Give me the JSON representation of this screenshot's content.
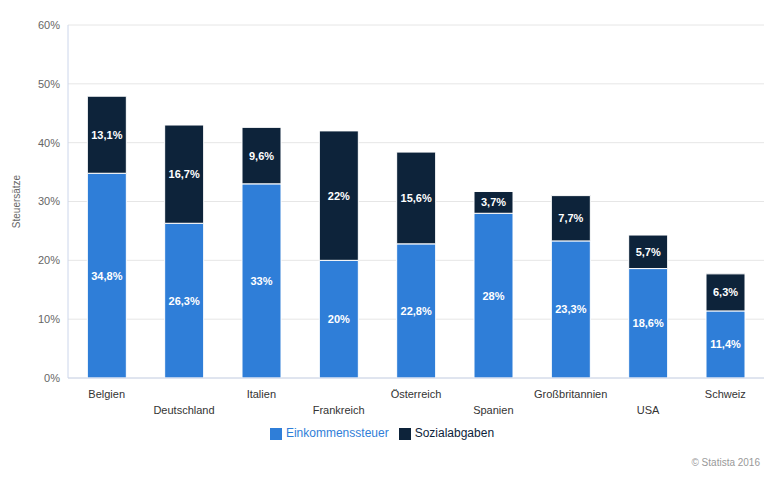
{
  "chart_data": {
    "type": "bar",
    "stacked": true,
    "grid": true,
    "legend": "bottom",
    "data_labels": true,
    "y_label": "Steuersätze",
    "annotations": [
      "© Statista 2016"
    ],
    "categories": [
      "Belgien",
      "Deutschland",
      "Italien",
      "Frankreich",
      "Österreich",
      "Spanien",
      "Großbritannien",
      "USA",
      "Schweiz"
    ],
    "ylim": [
      0,
      60
    ],
    "yticks": [
      {
        "value": 0,
        "label": "0%"
      },
      {
        "value": 10,
        "label": "10%"
      },
      {
        "value": 20,
        "label": "20%"
      },
      {
        "value": 30,
        "label": "30%"
      },
      {
        "value": 40,
        "label": "40%"
      },
      {
        "value": 50,
        "label": "50%"
      },
      {
        "value": 60,
        "label": "60%"
      }
    ],
    "series": [
      {
        "name": "Einkommenssteuer",
        "color": "#2f7ed8",
        "values": [
          34.8,
          26.3,
          33,
          20,
          22.8,
          28,
          23.3,
          18.6,
          11.4
        ],
        "value_labels": [
          "34,8%",
          "26,3%",
          "33%",
          "20%",
          "22,8%",
          "28%",
          "23,3%",
          "18,6%",
          "11,4%"
        ]
      },
      {
        "name": "Sozialabgaben",
        "color": "#0d233a",
        "values": [
          13.1,
          16.7,
          9.6,
          22,
          15.6,
          3.7,
          7.7,
          5.7,
          6.3
        ],
        "value_labels": [
          "13,1%",
          "16,7%",
          "9,6%",
          "22%",
          "15,6%",
          "3,7%",
          "7,7%",
          "5,7%",
          "6,3%"
        ]
      }
    ]
  }
}
